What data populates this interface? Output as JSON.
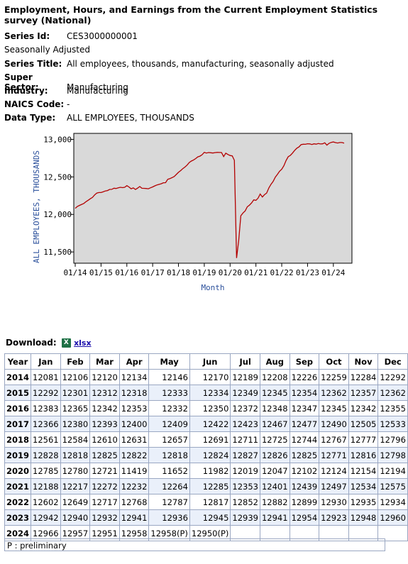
{
  "page_title": "Employment, Hours, and Earnings from the Current Employment Statistics survey (National)",
  "series_info": [
    {
      "label": "Series Id:",
      "value": "CES3000000001"
    },
    {
      "label": "",
      "value": "Seasonally Adjusted"
    },
    {
      "label": "Series Title:",
      "value": "All employees, thousands, manufacturing, seasonally adjusted"
    },
    {
      "label": "Super Sector:",
      "value": "Manufacturing"
    },
    {
      "label": "Industry:",
      "value": "Manufacturing"
    },
    {
      "label": "NAICS Code:",
      "value": "-"
    },
    {
      "label": "Data Type:",
      "value": "ALL EMPLOYEES, THOUSANDS"
    }
  ],
  "colors": {
    "line": "#b30000",
    "plot_bg": "#d9d9d9",
    "axis_label": "#2a4f9b",
    "alt_row": "#eaf0fa"
  },
  "chart_data": {
    "type": "line",
    "ylabel": "ALL EMPLOYEES, THOUSANDS",
    "xlabel": "Month",
    "ylim": [
      11350,
      13080
    ],
    "yticks": [
      11500,
      12000,
      12500,
      13000
    ],
    "ytick_labels": [
      "11,500",
      "12,000",
      "12,500",
      "13,000"
    ],
    "xtick_labels": [
      "01/14",
      "01/15",
      "01/16",
      "01/17",
      "01/18",
      "01/19",
      "01/20",
      "01/21",
      "01/22",
      "01/23",
      "01/24"
    ],
    "grid": false,
    "series": [
      {
        "values": [
          12081,
          12106,
          12120,
          12134,
          12146,
          12170,
          12189,
          12208,
          12226,
          12259,
          12284,
          12292,
          12292,
          12301,
          12312,
          12318,
          12333,
          12334,
          12349,
          12345,
          12354,
          12362,
          12357,
          12362,
          12383,
          12365,
          12342,
          12353,
          12332,
          12350,
          12372,
          12348,
          12347,
          12345,
          12342,
          12355,
          12366,
          12380,
          12393,
          12400,
          12409,
          12422,
          12423,
          12467,
          12477,
          12490,
          12505,
          12533,
          12561,
          12584,
          12610,
          12631,
          12657,
          12691,
          12711,
          12725,
          12744,
          12767,
          12777,
          12796,
          12828,
          12818,
          12825,
          12822,
          12818,
          12824,
          12827,
          12826,
          12825,
          12771,
          12816,
          12798,
          12785,
          12780,
          12721,
          11419,
          11652,
          11982,
          12019,
          12047,
          12102,
          12124,
          12154,
          12194,
          12188,
          12217,
          12272,
          12232,
          12264,
          12285,
          12353,
          12401,
          12439,
          12497,
          12534,
          12575,
          12602,
          12649,
          12717,
          12768,
          12787,
          12817,
          12852,
          12882,
          12899,
          12930,
          12935,
          12934,
          12942,
          12940,
          12932,
          12941,
          12936,
          12945,
          12939,
          12941,
          12954,
          12923,
          12948,
          12960,
          12966,
          12957,
          12951,
          12958,
          12958,
          12950
        ]
      }
    ]
  },
  "download": {
    "label": "Download:",
    "icon": "X",
    "link": "xlsx"
  },
  "table": {
    "headers": [
      "Year",
      "Jan",
      "Feb",
      "Mar",
      "Apr",
      "May",
      "Jun",
      "Jul",
      "Aug",
      "Sep",
      "Oct",
      "Nov",
      "Dec"
    ],
    "rows": [
      [
        "2014",
        "12081",
        "12106",
        "12120",
        "12134",
        "12146",
        "12170",
        "12189",
        "12208",
        "12226",
        "12259",
        "12284",
        "12292"
      ],
      [
        "2015",
        "12292",
        "12301",
        "12312",
        "12318",
        "12333",
        "12334",
        "12349",
        "12345",
        "12354",
        "12362",
        "12357",
        "12362"
      ],
      [
        "2016",
        "12383",
        "12365",
        "12342",
        "12353",
        "12332",
        "12350",
        "12372",
        "12348",
        "12347",
        "12345",
        "12342",
        "12355"
      ],
      [
        "2017",
        "12366",
        "12380",
        "12393",
        "12400",
        "12409",
        "12422",
        "12423",
        "12467",
        "12477",
        "12490",
        "12505",
        "12533"
      ],
      [
        "2018",
        "12561",
        "12584",
        "12610",
        "12631",
        "12657",
        "12691",
        "12711",
        "12725",
        "12744",
        "12767",
        "12777",
        "12796"
      ],
      [
        "2019",
        "12828",
        "12818",
        "12825",
        "12822",
        "12818",
        "12824",
        "12827",
        "12826",
        "12825",
        "12771",
        "12816",
        "12798"
      ],
      [
        "2020",
        "12785",
        "12780",
        "12721",
        "11419",
        "11652",
        "11982",
        "12019",
        "12047",
        "12102",
        "12124",
        "12154",
        "12194"
      ],
      [
        "2021",
        "12188",
        "12217",
        "12272",
        "12232",
        "12264",
        "12285",
        "12353",
        "12401",
        "12439",
        "12497",
        "12534",
        "12575"
      ],
      [
        "2022",
        "12602",
        "12649",
        "12717",
        "12768",
        "12787",
        "12817",
        "12852",
        "12882",
        "12899",
        "12930",
        "12935",
        "12934"
      ],
      [
        "2023",
        "12942",
        "12940",
        "12932",
        "12941",
        "12936",
        "12945",
        "12939",
        "12941",
        "12954",
        "12923",
        "12948",
        "12960"
      ],
      [
        "2024",
        "12966",
        "12957",
        "12951",
        "12958",
        "12958(P)",
        "12950(P)",
        "",
        "",
        "",
        "",
        "",
        ""
      ]
    ]
  },
  "footnote": "P : preliminary"
}
